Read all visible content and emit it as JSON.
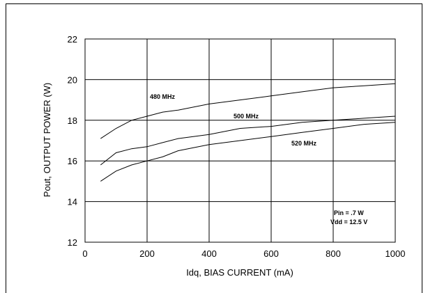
{
  "chart_data": {
    "type": "line",
    "title": "",
    "xlabel": "Idq, BIAS CURRENT  (mA)",
    "ylabel": "Pout, OUTPUT POWER  (W)",
    "xlim": [
      0,
      1000
    ],
    "ylim": [
      12,
      22
    ],
    "xticks": [
      "0",
      "200",
      "400",
      "600",
      "800",
      "1000"
    ],
    "yticks": [
      "12",
      "14",
      "16",
      "18",
      "20",
      "22"
    ],
    "grid": true,
    "series": [
      {
        "name": "480 MHz",
        "x": [
          50,
          100,
          150,
          200,
          250,
          300,
          400,
          500,
          600,
          700,
          800,
          900,
          1000
        ],
        "y": [
          17.1,
          17.6,
          18.0,
          18.2,
          18.4,
          18.5,
          18.8,
          19.0,
          19.2,
          19.4,
          19.6,
          19.7,
          19.8
        ]
      },
      {
        "name": "500 MHz",
        "x": [
          50,
          100,
          150,
          200,
          250,
          300,
          400,
          500,
          600,
          700,
          800,
          900,
          1000
        ],
        "y": [
          15.8,
          16.4,
          16.6,
          16.7,
          16.9,
          17.1,
          17.3,
          17.6,
          17.7,
          17.9,
          18.0,
          18.1,
          18.2
        ]
      },
      {
        "name": "520 MHz",
        "x": [
          50,
          100,
          150,
          200,
          250,
          300,
          400,
          500,
          600,
          700,
          800,
          900,
          1000
        ],
        "y": [
          15.0,
          15.5,
          15.8,
          16.0,
          16.2,
          16.5,
          16.8,
          17.0,
          17.2,
          17.4,
          17.6,
          17.8,
          17.9
        ]
      }
    ],
    "annotations": [
      "Pin = .7 W",
      "Vdd = 12.5 V"
    ]
  }
}
